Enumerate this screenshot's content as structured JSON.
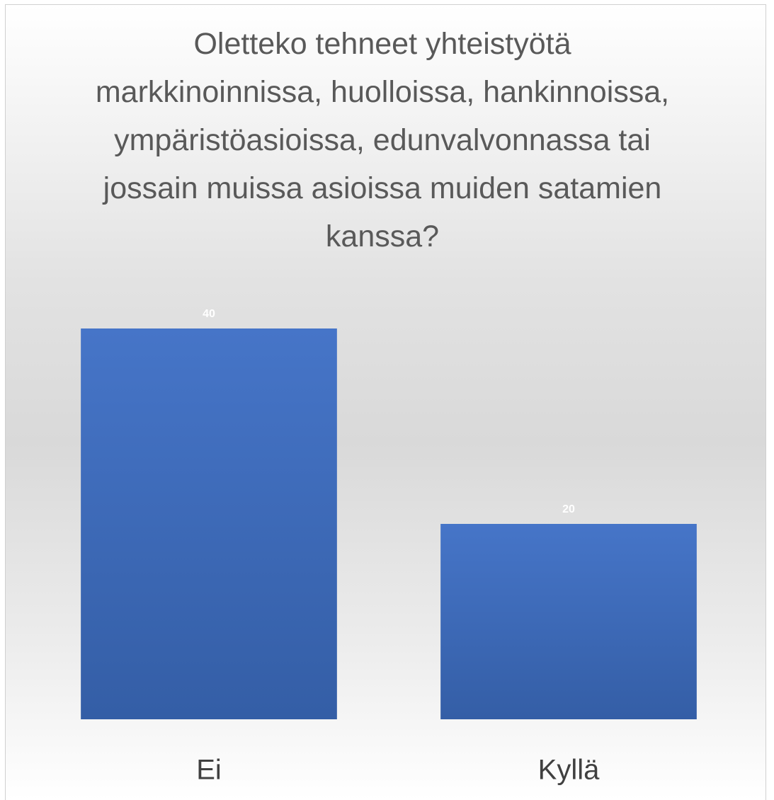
{
  "chart_data": {
    "type": "bar",
    "title": "Oletteko tehneet yhteistyötä markkinoinnissa, huolloissa, hankinnoissa, ympäristöasioissa, edunvalvonnassa tai jossain muissa asioissa muiden satamien kanssa?",
    "categories": [
      "Ei",
      "Kyllä"
    ],
    "values": [
      40,
      20
    ],
    "color": "#4472c4"
  }
}
